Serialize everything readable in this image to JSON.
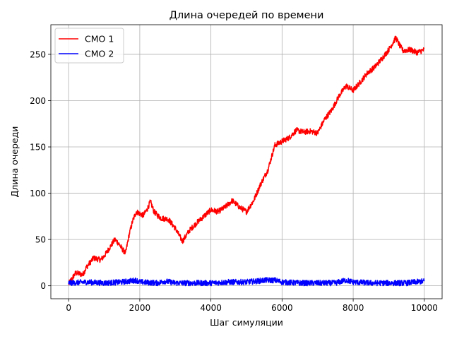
{
  "chart_data": {
    "type": "line",
    "title": "Длина очередей по времени",
    "xlabel": "Шаг симуляции",
    "ylabel": "Длина очереди",
    "xlim": [
      -500,
      10500
    ],
    "ylim": [
      -14,
      282
    ],
    "xticks": [
      0,
      2000,
      4000,
      6000,
      8000,
      10000
    ],
    "xtick_labels": [
      "0",
      "2000",
      "4000",
      "6000",
      "8000",
      "10000"
    ],
    "yticks": [
      0,
      50,
      100,
      150,
      200,
      250
    ],
    "ytick_labels": [
      "0",
      "50",
      "100",
      "150",
      "200",
      "250"
    ],
    "grid": true,
    "legend_position": "top-left",
    "series": [
      {
        "name": "СМО 1",
        "color": "#ff0000",
        "x": [
          0,
          200,
          400,
          500,
          700,
          900,
          1000,
          1200,
          1300,
          1400,
          1500,
          1600,
          1700,
          1800,
          1900,
          2000,
          2100,
          2200,
          2300,
          2400,
          2500,
          2600,
          2800,
          3000,
          3100,
          3200,
          3400,
          3600,
          3800,
          4000,
          4200,
          4400,
          4600,
          4800,
          5000,
          5200,
          5400,
          5600,
          5800,
          6000,
          6200,
          6400,
          6600,
          6800,
          7000,
          7200,
          7400,
          7600,
          7800,
          8000,
          8200,
          8400,
          8600,
          8800,
          9000,
          9200,
          9300,
          9400,
          9600,
          9800,
          10000
        ],
        "values": [
          2,
          14,
          12,
          20,
          30,
          28,
          32,
          44,
          50,
          46,
          40,
          35,
          55,
          70,
          80,
          78,
          76,
          82,
          91,
          80,
          76,
          73,
          72,
          62,
          55,
          48,
          60,
          68,
          75,
          82,
          80,
          85,
          92,
          85,
          80,
          92,
          110,
          125,
          152,
          156,
          160,
          168,
          166,
          167,
          165,
          180,
          190,
          205,
          216,
          211,
          220,
          230,
          236,
          245,
          255,
          268,
          260,
          254,
          255,
          252,
          255
        ],
        "noise": 3
      },
      {
        "name": "СМО 2",
        "color": "#0000ff",
        "x": [
          0,
          500,
          1000,
          1500,
          1900,
          2000,
          2500,
          2700,
          3000,
          3500,
          4000,
          4500,
          5000,
          5300,
          5500,
          5800,
          6000,
          6500,
          7000,
          7500,
          7800,
          8000,
          8500,
          9000,
          9500,
          10000
        ],
        "values": [
          3,
          4,
          3,
          4,
          6,
          4,
          3,
          5,
          3,
          3,
          3,
          4,
          4,
          5,
          6,
          6,
          4,
          3,
          3,
          3,
          6,
          4,
          3,
          3,
          3,
          5
        ],
        "noise": 3
      }
    ]
  }
}
